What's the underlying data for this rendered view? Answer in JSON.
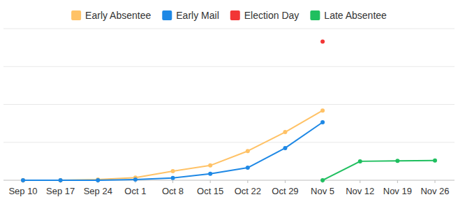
{
  "chart_data": {
    "type": "line",
    "categories": [
      "Sep 10",
      "Sep 17",
      "Sep 24",
      "Oct 1",
      "Oct 8",
      "Oct 15",
      "Oct 22",
      "Oct 29",
      "Nov 5",
      "Nov 12",
      "Nov 19",
      "Nov 26"
    ],
    "series": [
      {
        "name": "Early Absentee",
        "color": "#ffc266",
        "marker": "circle",
        "values": [
          0,
          0,
          0.02,
          0.07,
          0.24,
          0.39,
          0.77,
          1.27,
          1.84,
          null,
          null,
          null
        ]
      },
      {
        "name": "Early Mail",
        "color": "#1e88e5",
        "marker": "circle",
        "values": [
          0,
          0,
          0,
          0.02,
          0.06,
          0.17,
          0.33,
          0.85,
          1.53,
          null,
          null,
          null
        ]
      },
      {
        "name": "Election Day",
        "color": "#f23535",
        "marker": "circle",
        "values": [
          null,
          null,
          null,
          null,
          null,
          null,
          null,
          null,
          3.66,
          null,
          null,
          null
        ]
      },
      {
        "name": "Late Absentee",
        "color": "#1fbf5f",
        "marker": "circle",
        "values": [
          null,
          null,
          null,
          null,
          null,
          null,
          null,
          null,
          0,
          0.5,
          0.51,
          0.52
        ]
      }
    ],
    "ylim": [
      0,
      4
    ],
    "yticks": [
      0,
      1,
      2,
      3,
      4
    ],
    "grid": true,
    "legend": "top",
    "tick_labels": "x"
  }
}
